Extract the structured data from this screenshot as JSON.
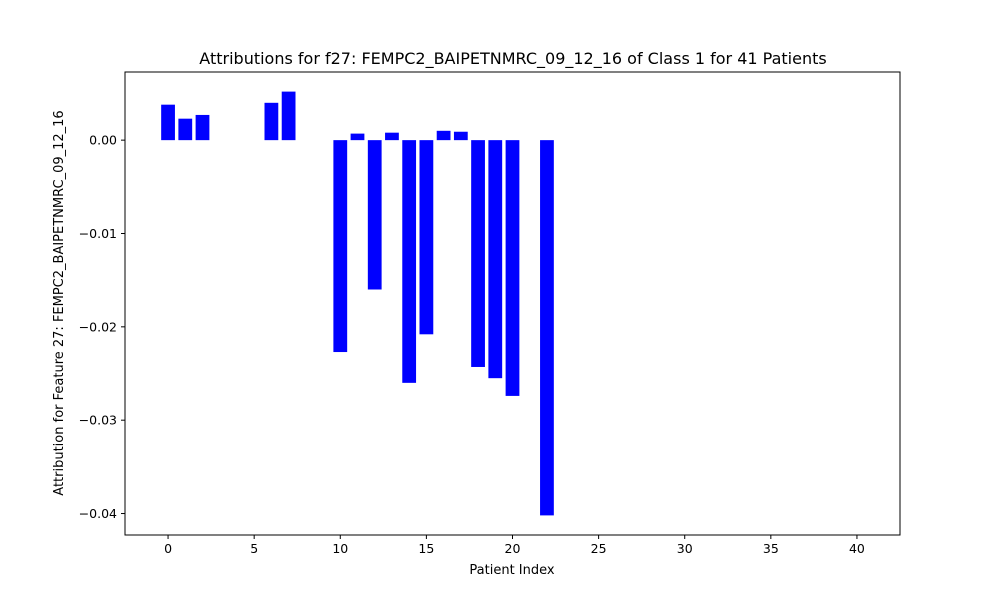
{
  "chart_data": {
    "type": "bar",
    "title": "Attributions for f27: FEMPC2_BAIPETNMRC_09_12_16 of Class 1 for 41 Patients",
    "xlabel": "Patient Index",
    "ylabel": "Attribution for Feature 27: FEMPC2_BAIPETNMRC_09_12_16",
    "x": [
      0,
      1,
      2,
      3,
      4,
      5,
      6,
      7,
      8,
      9,
      10,
      11,
      12,
      13,
      14,
      15,
      16,
      17,
      18,
      19,
      20,
      21,
      22,
      23,
      24,
      25,
      26,
      27,
      28,
      29,
      30,
      31,
      32,
      33,
      34,
      35,
      36,
      37,
      38,
      39,
      40
    ],
    "values": [
      0.0038,
      0.0023,
      0.0027,
      0,
      0,
      0,
      0.004,
      0.0052,
      0,
      0,
      -0.0227,
      0.0007,
      -0.016,
      0.0008,
      -0.026,
      -0.0208,
      0.001,
      0.0009,
      -0.0243,
      -0.0255,
      -0.0274,
      0,
      -0.0402,
      0,
      0,
      0,
      0,
      0,
      0,
      0,
      0,
      0,
      0,
      0,
      0,
      0,
      0,
      0,
      0,
      0,
      0
    ],
    "xlim": [
      -2.5,
      42.5
    ],
    "ylim": [
      -0.0423,
      0.0073
    ],
    "xticks": [
      0,
      5,
      10,
      15,
      20,
      25,
      30,
      35,
      40
    ],
    "xtick_labels": [
      "0",
      "5",
      "10",
      "15",
      "20",
      "25",
      "30",
      "35",
      "40"
    ],
    "yticks": [
      0.0,
      -0.01,
      -0.02,
      -0.03,
      -0.04
    ],
    "ytick_labels": [
      "0.00",
      "−0.01",
      "−0.02",
      "−0.03",
      "−0.04"
    ],
    "bar_color": "#0000ff",
    "grid": false,
    "legend": false
  }
}
